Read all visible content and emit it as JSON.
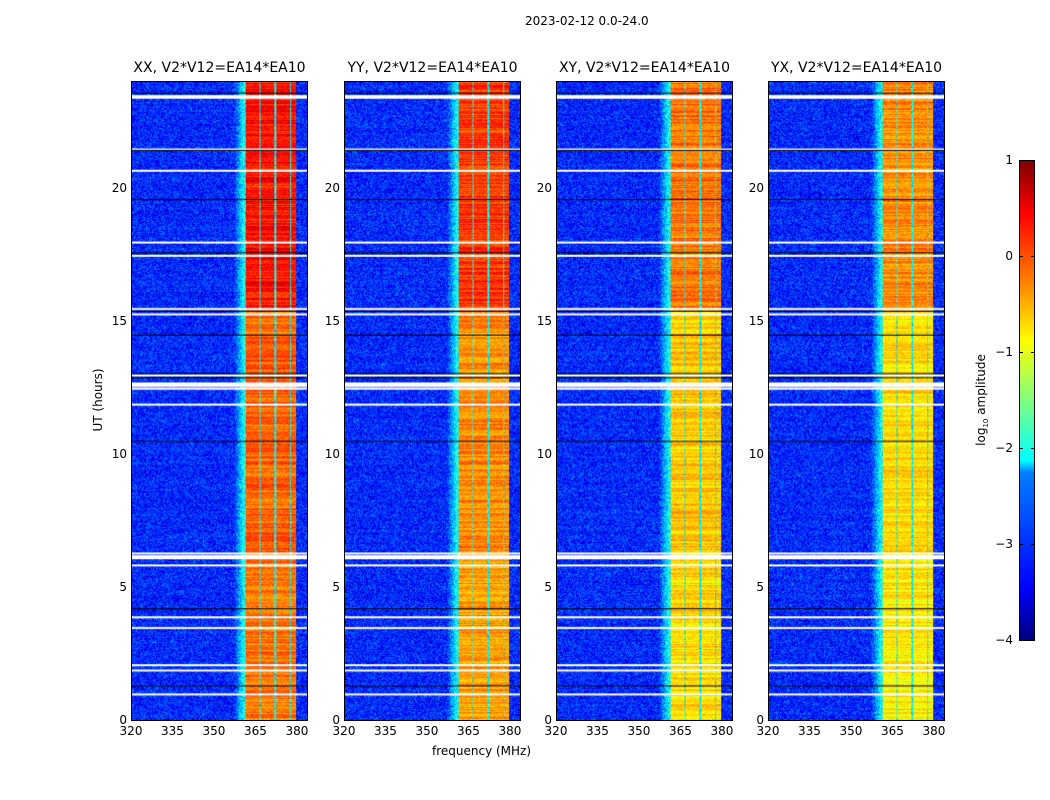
{
  "figure_title": "2023-02-12 0.0-24.0",
  "chart_data": [
    {
      "type": "heatmap",
      "title": "XX, V2*V12=EA14*EA10",
      "xlabel": "frequency (MHz)",
      "ylabel": "UT (hours)",
      "xlim": [
        320,
        384
      ],
      "ylim": [
        0,
        24
      ],
      "xticks": [
        320,
        335,
        350,
        365,
        380
      ],
      "yticks": [
        0,
        5,
        10,
        15,
        20
      ],
      "band_mhz": [
        361,
        380
      ],
      "band_level": 0.1
    },
    {
      "type": "heatmap",
      "title": "YY, V2*V12=EA14*EA10",
      "xlabel": "frequency (MHz)",
      "ylabel": "UT (hours)",
      "xlim": [
        320,
        384
      ],
      "ylim": [
        0,
        24
      ],
      "xticks": [
        320,
        335,
        350,
        365,
        380
      ],
      "yticks": [
        0,
        5,
        10,
        15,
        20
      ],
      "band_mhz": [
        361,
        380
      ],
      "band_level": -0.1
    },
    {
      "type": "heatmap",
      "title": "XY, V2*V12=EA14*EA10",
      "xlabel": "frequency (MHz)",
      "ylabel": "UT (hours)",
      "xlim": [
        320,
        384
      ],
      "ylim": [
        0,
        24
      ],
      "xticks": [
        320,
        335,
        350,
        365,
        380
      ],
      "yticks": [
        0,
        5,
        10,
        15,
        20
      ],
      "band_mhz": [
        361,
        380
      ],
      "band_level": -0.4
    },
    {
      "type": "heatmap",
      "title": "YX, V2*V12=EA14*EA10",
      "xlabel": "frequency (MHz)",
      "ylabel": "UT (hours)",
      "xlim": [
        320,
        384
      ],
      "ylim": [
        0,
        24
      ],
      "xticks": [
        320,
        335,
        350,
        365,
        380
      ],
      "yticks": [
        0,
        5,
        10,
        15,
        20
      ],
      "band_mhz": [
        361,
        380
      ],
      "band_level": -0.5
    }
  ],
  "colorbar": {
    "label": "log10 amplitude",
    "label_main": "log",
    "label_sub": "10",
    "label_rest": " amplitude",
    "ticks": [
      "1",
      "0",
      "−1",
      "−2",
      "−3",
      "−4"
    ],
    "range": [
      -4,
      1
    ]
  },
  "x_axis_label": "frequency (MHz)",
  "y_axis_label": "UT (hours)",
  "flagged_hours": [
    23.45,
    23.5,
    21.5,
    20.7,
    18.0,
    17.5,
    15.5,
    15.3,
    13.0,
    12.6,
    12.5,
    11.9,
    6.3,
    6.2,
    5.85,
    3.9,
    3.5,
    2.1,
    1.9,
    1.0
  ],
  "dark_hours": [
    23.6,
    21.45,
    19.6,
    17.6,
    15.4,
    14.5,
    13.05,
    12.9,
    10.5,
    4.2,
    1.3
  ]
}
